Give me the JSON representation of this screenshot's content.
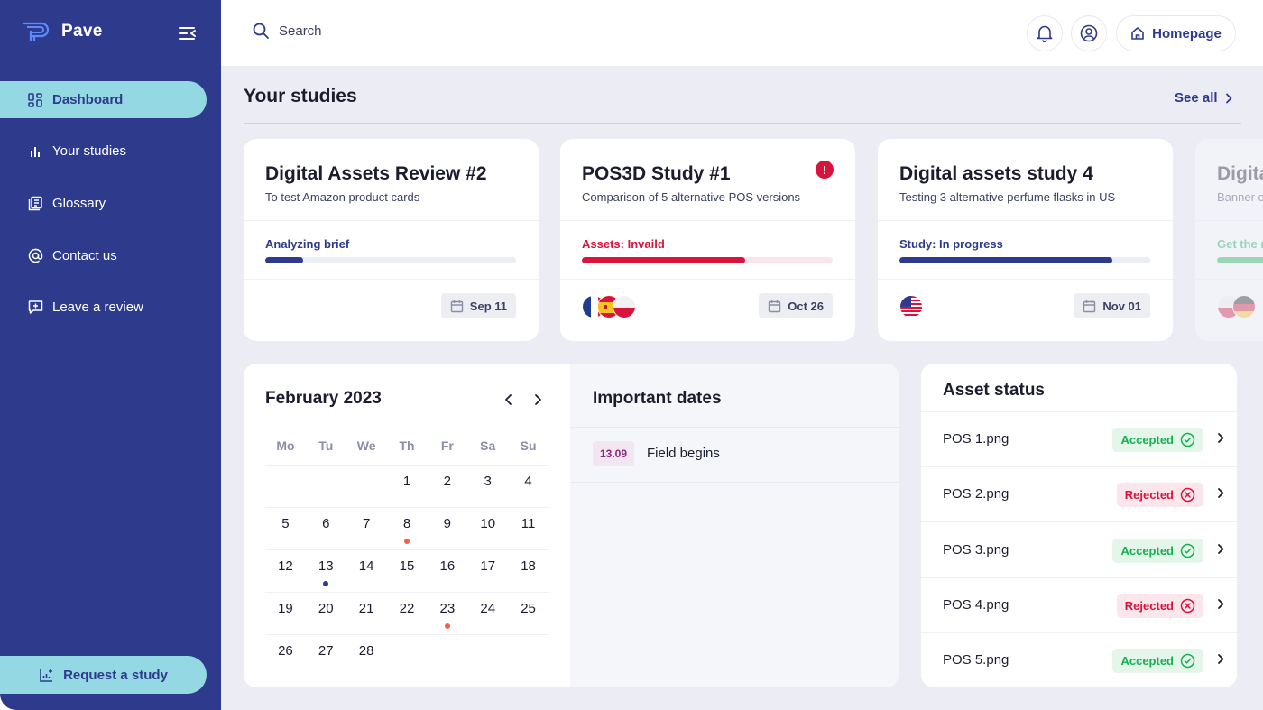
{
  "app": {
    "name": "Pave"
  },
  "sidebar": {
    "items": [
      {
        "label": "Dashboard",
        "icon": "grid-icon",
        "active": true
      },
      {
        "label": "Your studies",
        "icon": "bar-chart-icon",
        "active": false
      },
      {
        "label": "Glossary",
        "icon": "book-icon",
        "active": false
      },
      {
        "label": "Contact us",
        "icon": "at-icon",
        "active": false
      },
      {
        "label": "Leave a review",
        "icon": "message-plus-icon",
        "active": false
      }
    ],
    "request_label": "Request a study"
  },
  "topbar": {
    "search_placeholder": "Search",
    "homepage_label": "Homepage"
  },
  "studies": {
    "title": "Your studies",
    "see_all": "See all",
    "cards": [
      {
        "title": "Digital Assets Review #2",
        "subtitle": "To test Amazon product cards",
        "status": "Analyzing brief",
        "status_color": "#2e3a8c",
        "progress": 0.15,
        "bar_color": "#2e3a8c",
        "track_color": "#eceef5",
        "date": "Sep 11",
        "flags": [],
        "alert": false
      },
      {
        "title": "POS3D Study #1",
        "subtitle": "Comparison of 5 alternative POS versions",
        "status": "Assets: Invaild",
        "status_color": "#d8143c",
        "progress": 0.65,
        "bar_color": "#d8143c",
        "track_color": "#fbe5ea",
        "date": "Oct 26",
        "flags": [
          "france-flag",
          "spain-flag",
          "poland-flag"
        ],
        "alert": true
      },
      {
        "title": "Digital assets study 4",
        "subtitle": "Testing 3 alternative perfume flasks in US",
        "status": "Study: In progress",
        "status_color": "#2e3a8c",
        "progress": 0.85,
        "bar_color": "#2e3a8c",
        "track_color": "#eceef5",
        "date": "Nov 01",
        "flags": [
          "usa-flag"
        ],
        "alert": false
      },
      {
        "title": "Digita",
        "subtitle": "Banner c",
        "status": "Get the r",
        "status_color": "#15b053",
        "progress": 0.6,
        "bar_color": "#15b053",
        "track_color": "#e4f6ea",
        "date": "",
        "flags": [
          "poland-flag",
          "germany-flag"
        ],
        "alert": false
      }
    ]
  },
  "calendar": {
    "month_label": "February 2023",
    "weekdays": [
      "Mo",
      "Tu",
      "We",
      "Th",
      "Fr",
      "Sa",
      "Su"
    ],
    "weeks": [
      [
        "",
        "",
        "",
        "1",
        "2",
        "3",
        "4"
      ],
      [
        "5",
        "6",
        "7",
        "8",
        "9",
        "10",
        "11"
      ],
      [
        "12",
        "13",
        "14",
        "15",
        "16",
        "17",
        "18"
      ],
      [
        "19",
        "20",
        "21",
        "22",
        "23",
        "24",
        "25"
      ],
      [
        "26",
        "27",
        "28",
        "",
        "",
        "",
        ""
      ]
    ],
    "markers": {
      "8": "#f0604d",
      "13": "#2e3a8c",
      "23": "#f0604d"
    }
  },
  "important_dates": {
    "title": "Important dates",
    "items": [
      {
        "date": "13.09",
        "label": "Field begins"
      }
    ]
  },
  "asset_status": {
    "title": "Asset status",
    "items": [
      {
        "name": "POS 1.png",
        "status": "Accepted",
        "ok": true
      },
      {
        "name": "POS 2.png",
        "status": "Rejected",
        "ok": false
      },
      {
        "name": "POS 3.png",
        "status": "Accepted",
        "ok": true
      },
      {
        "name": "POS 4.png",
        "status": "Rejected",
        "ok": false
      },
      {
        "name": "POS 5.png",
        "status": "Accepted",
        "ok": true
      }
    ]
  },
  "colors": {
    "sidebar": "#2e3a8c",
    "accent": "#93d8e2",
    "background": "#ebecf4"
  }
}
